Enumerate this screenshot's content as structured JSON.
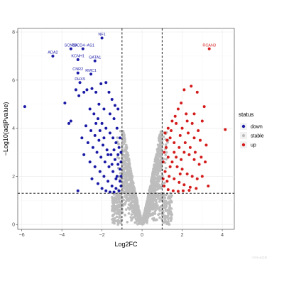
{
  "chart_data": {
    "type": "scatter",
    "title": "",
    "xlabel": "Log2FC",
    "ylabel": "−Log10(adjPvalue)",
    "xlim": [
      -6.2,
      4.6
    ],
    "ylim": [
      -0.2,
      8.15
    ],
    "x_ticks": [
      -6,
      -4,
      -2,
      0,
      2,
      4
    ],
    "x_tick_labels": [
      "−6",
      "−4",
      "−2",
      "0",
      "2",
      "4"
    ],
    "y_ticks": [
      0,
      2,
      4,
      6,
      8
    ],
    "grid": true,
    "thresholds": {
      "log2fc": [
        -1,
        1
      ],
      "neg_log10_padj": 1.3
    },
    "legend": {
      "title": "status",
      "position": "right",
      "entries": [
        {
          "label": "down",
          "color": "#1a1aa6"
        },
        {
          "label": "stable",
          "color": "#bdbdbd"
        },
        {
          "label": "up",
          "color": "#d41c1c"
        }
      ]
    },
    "colors": {
      "down": "#1a1aa6",
      "stable": "#bdbdbd",
      "up": "#d41c1c"
    },
    "labeled_genes": [
      {
        "name": "NF1",
        "x": -2.0,
        "y": 7.75,
        "status": "down"
      },
      {
        "name": "SCN3A",
        "x": -3.55,
        "y": 7.3,
        "status": "down"
      },
      {
        "name": "PDCD4−AS1",
        "x": -2.95,
        "y": 7.3,
        "status": "down"
      },
      {
        "name": "ADA2",
        "x": -4.45,
        "y": 7.0,
        "status": "down"
      },
      {
        "name": "KCNH1",
        "x": -3.2,
        "y": 6.85,
        "status": "down"
      },
      {
        "name": "GATA1",
        "x": -2.35,
        "y": 6.8,
        "status": "down"
      },
      {
        "name": "CNR2",
        "x": -3.2,
        "y": 6.3,
        "status": "down"
      },
      {
        "name": "RMC1",
        "x": -2.55,
        "y": 6.25,
        "status": "down"
      },
      {
        "name": "DHX9",
        "x": -3.1,
        "y": 5.9,
        "status": "down"
      },
      {
        "name": "RCAN3",
        "x": 3.35,
        "y": 7.3,
        "status": "up"
      }
    ],
    "down_points": [
      [
        -5.85,
        4.9
      ],
      [
        -3.85,
        5.05
      ],
      [
        -3.65,
        4.2
      ],
      [
        -3.55,
        4.3
      ],
      [
        -3.3,
        5.6
      ],
      [
        -3.15,
        5.35
      ],
      [
        -2.9,
        5.5
      ],
      [
        -2.75,
        5.6
      ],
      [
        -2.5,
        5.65
      ],
      [
        -2.3,
        5.5
      ],
      [
        -2.05,
        5.85
      ],
      [
        -1.8,
        5.9
      ],
      [
        -1.65,
        5.5
      ],
      [
        -1.5,
        5.2
      ],
      [
        -1.35,
        4.95
      ],
      [
        -1.2,
        4.8
      ],
      [
        -2.6,
        4.8
      ],
      [
        -2.4,
        4.6
      ],
      [
        -2.2,
        4.4
      ],
      [
        -2.0,
        4.2
      ],
      [
        -1.8,
        4.0
      ],
      [
        -1.6,
        3.8
      ],
      [
        -1.45,
        3.6
      ],
      [
        -1.3,
        3.4
      ],
      [
        -1.15,
        3.2
      ],
      [
        -2.8,
        4.1
      ],
      [
        -2.55,
        3.9
      ],
      [
        -2.35,
        3.7
      ],
      [
        -2.15,
        3.5
      ],
      [
        -1.95,
        3.3
      ],
      [
        -1.75,
        3.1
      ],
      [
        -1.55,
        2.9
      ],
      [
        -1.35,
        2.7
      ],
      [
        -1.2,
        2.5
      ],
      [
        -1.1,
        2.3
      ],
      [
        -3.0,
        3.6
      ],
      [
        -2.7,
        3.4
      ],
      [
        -2.45,
        3.2
      ],
      [
        -2.25,
        3.0
      ],
      [
        -2.05,
        2.8
      ],
      [
        -1.85,
        2.6
      ],
      [
        -1.65,
        2.4
      ],
      [
        -1.45,
        2.2
      ],
      [
        -1.25,
        2.0
      ],
      [
        -1.1,
        1.8
      ],
      [
        -3.2,
        1.4
      ],
      [
        -2.9,
        2.9
      ],
      [
        -2.6,
        2.6
      ],
      [
        -2.35,
        2.4
      ],
      [
        -2.1,
        2.2
      ],
      [
        -1.9,
        2.0
      ],
      [
        -1.7,
        1.8
      ],
      [
        -1.5,
        1.6
      ],
      [
        -1.3,
        1.5
      ],
      [
        -1.15,
        1.4
      ],
      [
        -2.5,
        1.9
      ],
      [
        -2.2,
        1.7
      ],
      [
        -2.0,
        1.5
      ],
      [
        -1.8,
        1.4
      ],
      [
        -1.6,
        1.35
      ],
      [
        -1.4,
        1.35
      ],
      [
        -1.05,
        1.6
      ],
      [
        -1.05,
        2.0
      ],
      [
        -1.05,
        2.6
      ],
      [
        -1.05,
        3.0
      ],
      [
        -1.1,
        3.6
      ],
      [
        -1.25,
        4.0
      ],
      [
        -1.4,
        4.4
      ],
      [
        -1.6,
        4.6
      ],
      [
        -1.9,
        4.8
      ],
      [
        -2.15,
        5.0
      ],
      [
        -1.3,
        1.9
      ],
      [
        -1.5,
        2.5
      ],
      [
        -1.7,
        2.9
      ],
      [
        -1.9,
        3.6
      ],
      [
        -2.1,
        3.9
      ],
      [
        -2.3,
        4.2
      ],
      [
        -1.2,
        2.9
      ],
      [
        -1.4,
        3.1
      ]
    ],
    "up_points": [
      [
        4.15,
        3.95
      ],
      [
        3.1,
        4.9
      ],
      [
        2.75,
        5.5
      ],
      [
        2.45,
        5.75
      ],
      [
        2.1,
        5.6
      ],
      [
        1.95,
        5.05
      ],
      [
        2.6,
        4.6
      ],
      [
        3.0,
        4.3
      ],
      [
        2.2,
        4.6
      ],
      [
        1.8,
        4.8
      ],
      [
        1.5,
        4.3
      ],
      [
        1.3,
        4.0
      ],
      [
        1.15,
        3.8
      ],
      [
        1.7,
        4.2
      ],
      [
        2.0,
        4.0
      ],
      [
        2.3,
        3.8
      ],
      [
        2.6,
        3.6
      ],
      [
        2.9,
        3.5
      ],
      [
        3.2,
        3.3
      ],
      [
        1.4,
        3.6
      ],
      [
        1.6,
        3.4
      ],
      [
        1.85,
        3.2
      ],
      [
        2.1,
        3.0
      ],
      [
        2.35,
        2.9
      ],
      [
        2.6,
        2.7
      ],
      [
        2.85,
        2.5
      ],
      [
        1.2,
        3.2
      ],
      [
        1.3,
        2.8
      ],
      [
        1.5,
        2.6
      ],
      [
        1.75,
        2.4
      ],
      [
        2.0,
        2.3
      ],
      [
        2.25,
        2.1
      ],
      [
        2.5,
        2.0
      ],
      [
        2.75,
        1.9
      ],
      [
        1.15,
        2.2
      ],
      [
        1.35,
        2.0
      ],
      [
        1.6,
        1.9
      ],
      [
        1.85,
        1.75
      ],
      [
        2.1,
        1.65
      ],
      [
        2.4,
        1.55
      ],
      [
        2.7,
        1.5
      ],
      [
        1.1,
        1.6
      ],
      [
        1.3,
        1.45
      ],
      [
        1.55,
        1.4
      ],
      [
        1.8,
        1.38
      ],
      [
        2.05,
        1.4
      ],
      [
        2.35,
        1.42
      ],
      [
        1.05,
        1.9
      ],
      [
        1.05,
        2.6
      ],
      [
        1.1,
        3.0
      ],
      [
        1.25,
        3.5
      ],
      [
        1.45,
        3.9
      ],
      [
        1.65,
        4.5
      ],
      [
        1.9,
        3.7
      ],
      [
        2.15,
        3.4
      ],
      [
        2.4,
        3.2
      ],
      [
        2.65,
        3.0
      ],
      [
        2.95,
        2.8
      ],
      [
        3.15,
        2.6
      ],
      [
        3.3,
        1.6
      ],
      [
        3.0,
        2.0
      ],
      [
        2.8,
        3.9
      ],
      [
        2.5,
        4.2
      ],
      [
        2.25,
        4.3
      ],
      [
        1.95,
        2.7
      ],
      [
        1.7,
        2.8
      ],
      [
        1.4,
        2.4
      ],
      [
        1.25,
        1.8
      ],
      [
        1.6,
        3.0
      ],
      [
        1.9,
        2.1
      ]
    ]
  }
}
